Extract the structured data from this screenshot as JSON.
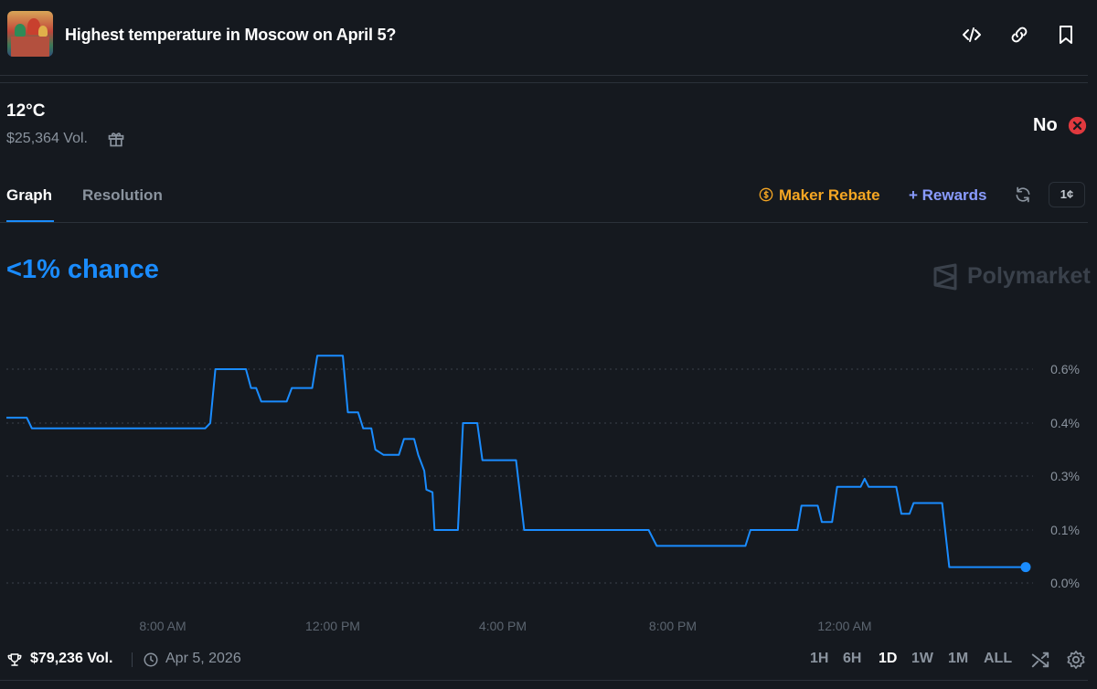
{
  "header": {
    "title": "Highest temperature in Moscow on April 5?",
    "icons": [
      "embed-icon",
      "link-icon",
      "bookmark-icon"
    ]
  },
  "market": {
    "outcome": "12°C",
    "volume": "$25,364 Vol.",
    "side_label": "No",
    "side_color": "#e0393e"
  },
  "tabs": [
    {
      "label": "Graph",
      "active": true
    },
    {
      "label": "Resolution",
      "active": false
    }
  ],
  "toolbar": {
    "maker_rebate": "Maker Rebate",
    "rewards": "+ Rewards",
    "cent_label": "1¢"
  },
  "chance_text": "<1% chance",
  "brand": "Polymarket",
  "colors": {
    "accent": "#1a8cff",
    "background": "#15191f",
    "rebate": "#f5a623",
    "rewards": "#8a9cff"
  },
  "chart_data": {
    "type": "line",
    "y_ticks": [
      "0.6%",
      "0.4%",
      "0.3%",
      "0.1%",
      "0.0%"
    ],
    "x_ticks": [
      "8:00 AM",
      "12:00 PM",
      "4:00 PM",
      "8:00 PM",
      "12:00 AM"
    ],
    "ylim": [
      0,
      0.7
    ],
    "grid": true,
    "series": [
      {
        "color": "#1a8cff",
        "points": [
          [
            0.0,
            0.42
          ],
          [
            0.02,
            0.42
          ],
          [
            0.025,
            0.39
          ],
          [
            0.195,
            0.39
          ],
          [
            0.2,
            0.4
          ],
          [
            0.205,
            0.6
          ],
          [
            0.235,
            0.6
          ],
          [
            0.24,
            0.53
          ],
          [
            0.245,
            0.53
          ],
          [
            0.25,
            0.48
          ],
          [
            0.275,
            0.48
          ],
          [
            0.28,
            0.53
          ],
          [
            0.3,
            0.53
          ],
          [
            0.305,
            0.65
          ],
          [
            0.33,
            0.65
          ],
          [
            0.335,
            0.44
          ],
          [
            0.345,
            0.44
          ],
          [
            0.35,
            0.39
          ],
          [
            0.358,
            0.39
          ],
          [
            0.362,
            0.35
          ],
          [
            0.37,
            0.34
          ],
          [
            0.385,
            0.34
          ],
          [
            0.39,
            0.37
          ],
          [
            0.4,
            0.37
          ],
          [
            0.404,
            0.34
          ],
          [
            0.41,
            0.31
          ],
          [
            0.412,
            0.25
          ],
          [
            0.418,
            0.24
          ],
          [
            0.42,
            0.1
          ],
          [
            0.443,
            0.1
          ],
          [
            0.448,
            0.4
          ],
          [
            0.462,
            0.4
          ],
          [
            0.467,
            0.33
          ],
          [
            0.5,
            0.33
          ],
          [
            0.508,
            0.1
          ],
          [
            0.63,
            0.1
          ],
          [
            0.638,
            0.07
          ],
          [
            0.725,
            0.07
          ],
          [
            0.73,
            0.1
          ],
          [
            0.776,
            0.1
          ],
          [
            0.78,
            0.19
          ],
          [
            0.796,
            0.19
          ],
          [
            0.8,
            0.13
          ],
          [
            0.81,
            0.13
          ],
          [
            0.815,
            0.26
          ],
          [
            0.838,
            0.26
          ],
          [
            0.842,
            0.29
          ],
          [
            0.846,
            0.26
          ],
          [
            0.873,
            0.26
          ],
          [
            0.878,
            0.16
          ],
          [
            0.886,
            0.16
          ],
          [
            0.89,
            0.2
          ],
          [
            0.918,
            0.2
          ],
          [
            0.925,
            0.03
          ],
          [
            1.0,
            0.03
          ]
        ]
      }
    ]
  },
  "footer": {
    "volume": "$79,236 Vol.",
    "date": "Apr 5, 2026",
    "ranges": [
      "1H",
      "6H",
      "1D",
      "1W",
      "1M",
      "ALL"
    ],
    "active_range": "1D"
  }
}
